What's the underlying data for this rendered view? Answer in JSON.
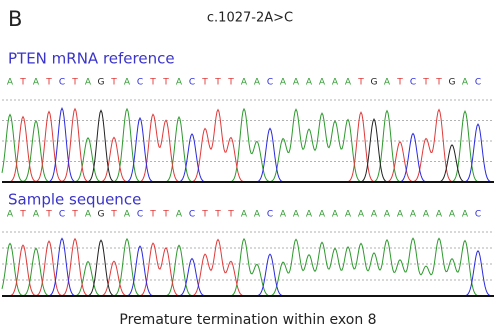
{
  "panel_label": "B",
  "title": "c.1027-2A>C",
  "reference": {
    "label": "PTEN mRNA reference",
    "bases": [
      "A",
      "T",
      "A",
      "T",
      "C",
      "T",
      "A",
      "G",
      "T",
      "A",
      "C",
      "T",
      "T",
      "A",
      "C",
      "T",
      "T",
      "T",
      "A",
      "A",
      "C",
      "A",
      "A",
      "A",
      "A",
      "A",
      "A",
      "T",
      "G",
      "A",
      "T",
      "C",
      "T",
      "T",
      "G",
      "A",
      "C"
    ]
  },
  "sample": {
    "label": "Sample sequence",
    "bases": [
      "A",
      "T",
      "A",
      "T",
      "C",
      "T",
      "A",
      "G",
      "T",
      "A",
      "C",
      "T",
      "T",
      "A",
      "C",
      "T",
      "T",
      "T",
      "A",
      "A",
      "C",
      "A",
      "A",
      "A",
      "A",
      "A",
      "A",
      "A",
      "A",
      "A",
      "A",
      "A",
      "A",
      "A",
      "A",
      "A",
      "C"
    ]
  },
  "caption": "Premature termination within exon 8"
}
